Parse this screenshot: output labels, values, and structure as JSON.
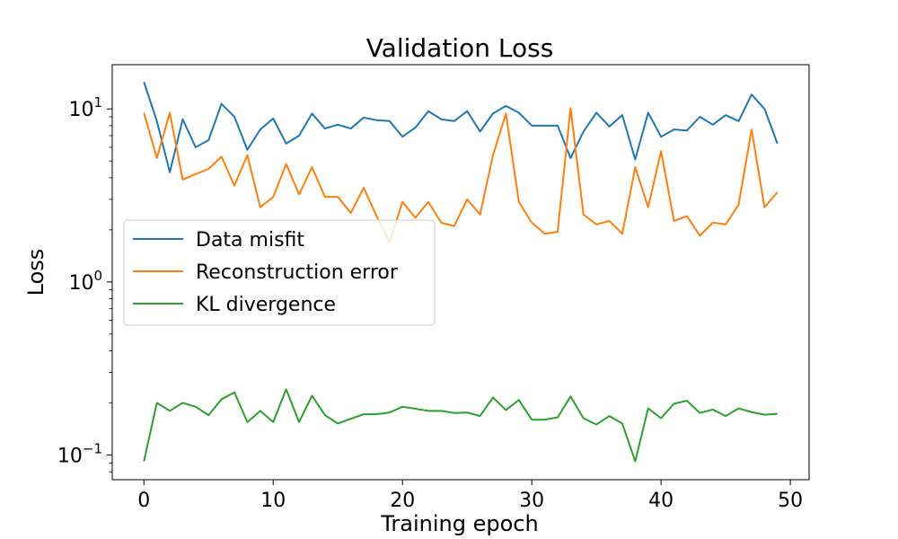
{
  "chart_data": {
    "type": "line",
    "title": "Validation Loss",
    "xlabel": "Training epoch",
    "ylabel": "Loss",
    "yscale": "log",
    "xlim": [
      -2.45,
      51.45
    ],
    "ylim": [
      0.072,
      18
    ],
    "xticks": [
      {
        "value": 0,
        "label": "0"
      },
      {
        "value": 10,
        "label": "10"
      },
      {
        "value": 20,
        "label": "20"
      },
      {
        "value": 30,
        "label": "30"
      },
      {
        "value": 40,
        "label": "40"
      },
      {
        "value": 50,
        "label": "50"
      }
    ],
    "yticks": [
      {
        "value": 10,
        "label": "10",
        "exp": "1"
      },
      {
        "value": 1,
        "label": "10",
        "exp": "0"
      },
      {
        "value": 0.1,
        "label": "10",
        "exp": "−1"
      }
    ],
    "grid": false,
    "legend_position": "center-left",
    "x": [
      0,
      1,
      2,
      3,
      4,
      5,
      6,
      7,
      8,
      9,
      10,
      11,
      12,
      13,
      14,
      15,
      16,
      17,
      18,
      19,
      20,
      21,
      22,
      23,
      24,
      25,
      26,
      27,
      28,
      29,
      30,
      31,
      32,
      33,
      34,
      35,
      36,
      37,
      38,
      39,
      40,
      41,
      42,
      43,
      44,
      45,
      46,
      47,
      48,
      49
    ],
    "series": [
      {
        "name": "Data misfit",
        "color": "#1f77b4",
        "values": [
          14.3,
          8.5,
          4.3,
          8.7,
          6.0,
          6.6,
          10.7,
          9.0,
          5.8,
          7.6,
          8.8,
          6.3,
          7.0,
          9.4,
          7.7,
          8.1,
          7.7,
          8.9,
          8.6,
          8.5,
          6.9,
          7.8,
          9.7,
          8.7,
          8.5,
          9.7,
          7.4,
          9.4,
          10.4,
          9.5,
          8.0,
          8.0,
          8.0,
          5.2,
          7.4,
          9.5,
          7.9,
          9.2,
          5.1,
          9.5,
          6.9,
          7.6,
          7.5,
          9.0,
          8.1,
          9.2,
          8.5,
          12.1,
          10.0,
          6.3
        ]
      },
      {
        "name": "Reconstruction error",
        "color": "#ff7f0e",
        "values": [
          9.5,
          5.2,
          9.5,
          3.9,
          4.2,
          4.5,
          5.3,
          3.6,
          5.4,
          2.7,
          3.1,
          4.8,
          3.2,
          4.6,
          3.1,
          3.1,
          2.5,
          3.5,
          2.4,
          1.7,
          2.9,
          2.35,
          2.9,
          2.2,
          2.1,
          3.0,
          2.45,
          5.4,
          9.4,
          2.9,
          2.2,
          1.9,
          1.95,
          10.1,
          2.45,
          2.15,
          2.25,
          1.9,
          4.6,
          2.7,
          5.7,
          2.25,
          2.4,
          1.85,
          2.2,
          2.15,
          2.8,
          7.6,
          2.7,
          3.3
        ]
      },
      {
        "name": "KL divergence",
        "color": "#2ca02c",
        "values": [
          0.092,
          0.2,
          0.18,
          0.2,
          0.19,
          0.17,
          0.21,
          0.23,
          0.155,
          0.18,
          0.155,
          0.24,
          0.155,
          0.22,
          0.17,
          0.152,
          0.162,
          0.172,
          0.172,
          0.176,
          0.19,
          0.185,
          0.18,
          0.18,
          0.175,
          0.176,
          0.168,
          0.215,
          0.182,
          0.208,
          0.16,
          0.16,
          0.165,
          0.218,
          0.163,
          0.15,
          0.168,
          0.152,
          0.092,
          0.186,
          0.163,
          0.198,
          0.206,
          0.175,
          0.183,
          0.168,
          0.186,
          0.177,
          0.171,
          0.173
        ]
      }
    ]
  }
}
